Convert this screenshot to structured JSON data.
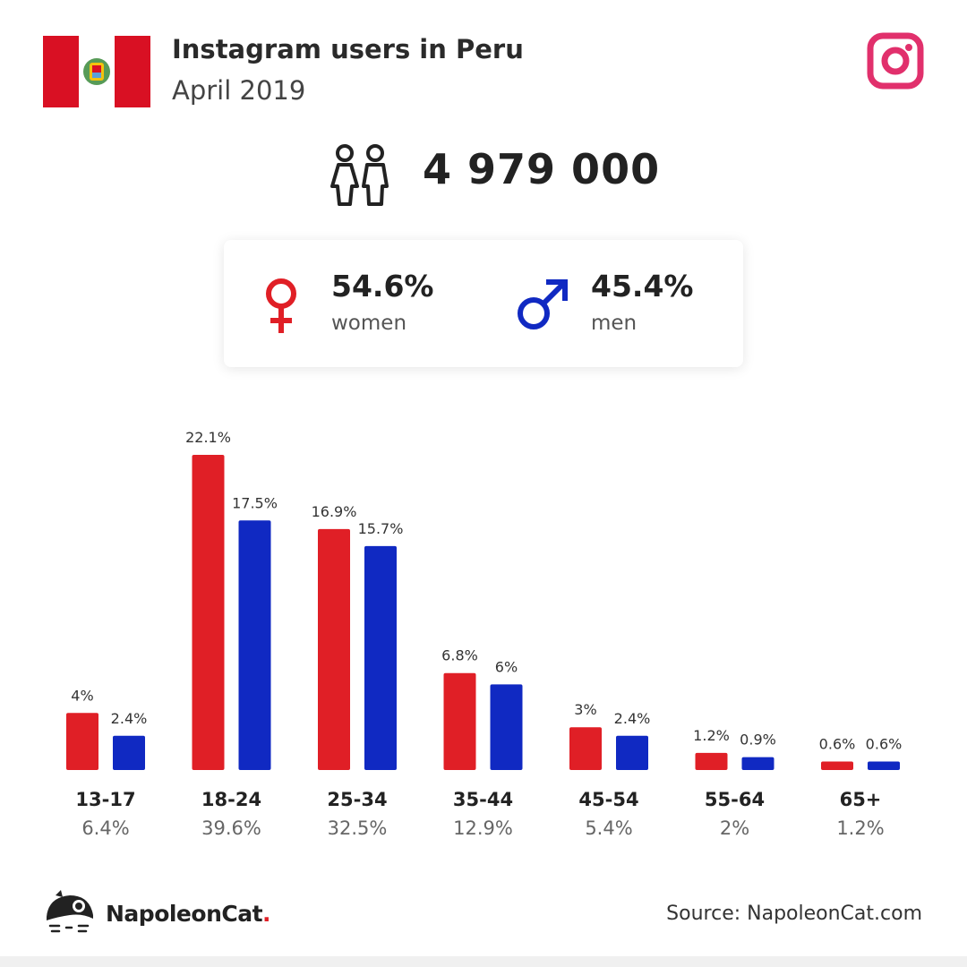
{
  "header": {
    "title": "Instagram users in Peru",
    "subtitle": "April 2019"
  },
  "icons": {
    "flag": "peru-flag-icon",
    "brand": "instagram-icon",
    "users": "users-icon",
    "female": "female-symbol-icon",
    "male": "male-symbol-icon",
    "footer_logo": "napoleoncat-logo-icon"
  },
  "total": {
    "value": "4 979 000"
  },
  "gender": {
    "women": {
      "pct": "54.6%",
      "label": "women"
    },
    "men": {
      "pct": "45.4%",
      "label": "men"
    }
  },
  "colors": {
    "women": "#e01f26",
    "men": "#1029c2",
    "flag_red": "#d91023",
    "instagram": "#e1306c"
  },
  "chart_data": {
    "type": "bar",
    "categories": [
      "13-17",
      "18-24",
      "25-34",
      "35-44",
      "45-54",
      "55-64",
      "65+"
    ],
    "group_totals": [
      "6.4%",
      "39.6%",
      "32.5%",
      "12.9%",
      "5.4%",
      "2%",
      "1.2%"
    ],
    "series": [
      {
        "values": [
          4,
          22.1,
          16.9,
          6.8,
          3,
          1.2,
          0.6
        ],
        "labels": [
          "4%",
          "22.1%",
          "16.9%",
          "6.8%",
          "3%",
          "1.2%",
          "0.6%"
        ],
        "color": "#e01f26"
      },
      {
        "values": [
          2.4,
          17.5,
          15.7,
          6,
          2.4,
          0.9,
          0.6
        ],
        "labels": [
          "2.4%",
          "17.5%",
          "15.7%",
          "6%",
          "2.4%",
          "0.9%",
          "0.6%"
        ],
        "color": "#1029c2"
      }
    ],
    "ylim": [
      0,
      22.1
    ],
    "grid": false,
    "title": "",
    "xlabel": "",
    "ylabel": ""
  },
  "footer": {
    "brand_name": "NapoleonCat",
    "brand_dot": ".",
    "source": "Source: NapoleonCat.com"
  }
}
